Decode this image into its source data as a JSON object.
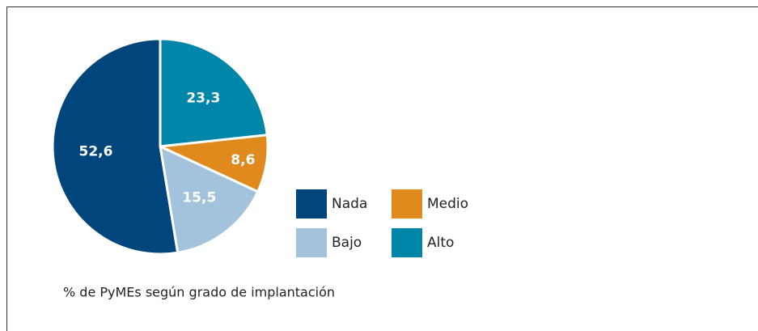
{
  "chart_data": {
    "type": "pie",
    "categories": [
      "Alto",
      "Medio",
      "Bajo",
      "Nada"
    ],
    "values": [
      23.3,
      8.6,
      15.5,
      52.6
    ],
    "value_labels": [
      "23,3",
      "8,6",
      "15,5",
      "52,6"
    ],
    "colors": [
      "#0086a8",
      "#e08a1e",
      "#a3c3dc",
      "#00457c"
    ],
    "caption": "% de PyMEs según grado de implantación"
  }
}
